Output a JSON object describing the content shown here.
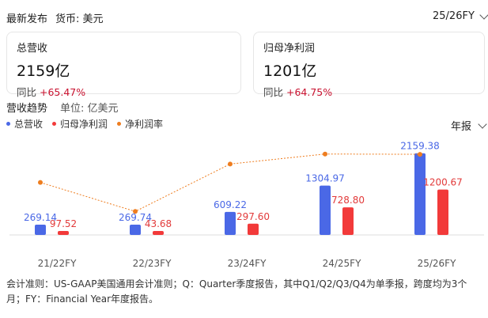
{
  "header": {
    "title": "最新发布",
    "currency": "货币: 美元",
    "period": "25/26FY"
  },
  "cards": [
    {
      "label": "总营收",
      "value": "2159亿",
      "yoy_label": "同比",
      "yoy_value": "+65.47%"
    },
    {
      "label": "归母净利润",
      "value": "1201亿",
      "yoy_label": "同比",
      "yoy_value": "+64.75%"
    }
  ],
  "trend": {
    "title": "营收趋势",
    "unit": "单位: 亿美元",
    "frequency": "年报"
  },
  "colors": {
    "revenue": "#4a68e6",
    "profit": "#f23a3a",
    "margin": "#ee7d1f",
    "yoy_red": "#c8102e"
  },
  "chart_data": {
    "type": "bar",
    "categories": [
      "21/22FY",
      "22/23FY",
      "23/24FY",
      "24/25FY",
      "25/26FY"
    ],
    "series": [
      {
        "name": "总营收",
        "kind": "bar",
        "values": [
          269.14,
          269.74,
          609.22,
          1304.97,
          2159.38
        ],
        "labels": [
          "269.14",
          "269.74",
          "609.22",
          "1304.97",
          "2159.38"
        ]
      },
      {
        "name": "归母净利润",
        "kind": "bar",
        "values": [
          97.52,
          43.68,
          297.6,
          728.8,
          1200.67
        ],
        "labels": [
          "97.52",
          "43.68",
          "297.60",
          "728.80",
          "1200.67"
        ]
      },
      {
        "name": "净利润率",
        "kind": "line",
        "values": [
          36.2,
          16.2,
          48.9,
          55.8,
          55.6
        ]
      }
    ],
    "ylim": [
      0,
      2300
    ],
    "margin_ylim": [
      0,
      60
    ],
    "legend": "top-left",
    "grid": false
  },
  "footnote": "会计准则：US-GAAP美国通用会计准则；Q：Quarter季度报告，其中Q1/Q2/Q3/Q4为单季报，跨度均为3个月；FY：Financial Year年度报告。"
}
